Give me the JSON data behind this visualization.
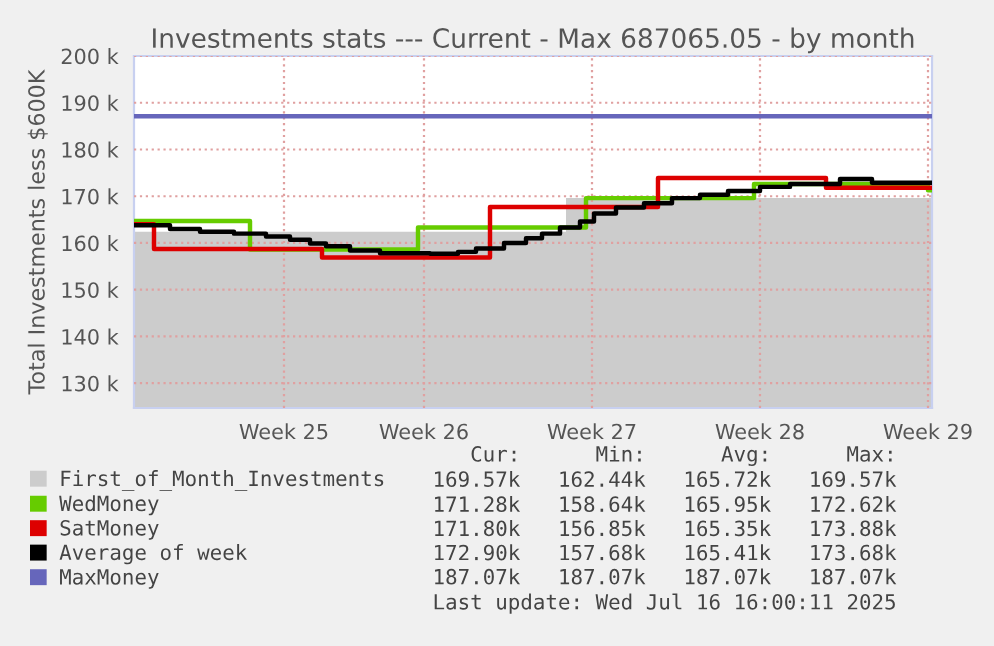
{
  "chart_data": {
    "type": "step",
    "title": "Investments stats --- Current - Max 687065.05 - by month",
    "ylabel": "Total Investments less $600K",
    "xlim": [
      "2025-06-13T10:00",
      "2025-07-16T16:00"
    ],
    "xticks": [
      {
        "value": "2025-06-19T16:00",
        "label": "Week 25"
      },
      {
        "value": "2025-06-25T12:00",
        "label": "Week 26"
      },
      {
        "value": "2025-07-02T12:00",
        "label": "Week 27"
      },
      {
        "value": "2025-07-09T12:00",
        "label": "Week 28"
      },
      {
        "value": "2025-07-16T12:00",
        "label": "Week 29"
      }
    ],
    "ylim": [
      124.7,
      200
    ],
    "yticks": [
      {
        "value": 130,
        "label": "130 k"
      },
      {
        "value": 140,
        "label": "140 k"
      },
      {
        "value": 150,
        "label": "150 k"
      },
      {
        "value": 160,
        "label": "160 k"
      },
      {
        "value": 170,
        "label": "170 k"
      },
      {
        "value": 180,
        "label": "180 k"
      },
      {
        "value": 190,
        "label": "190 k"
      },
      {
        "value": 200,
        "label": "200 k"
      }
    ],
    "grid": true,
    "legend": "bottom",
    "line_style": "solid",
    "series": [
      {
        "name": "First_of_Month_Investments",
        "type": "area",
        "color": "#cccccc",
        "x": [
          "2025-06-13T10:00",
          "2025-07-01T10:00",
          "2025-07-16T16:00"
        ],
        "values": [
          162.4,
          169.6,
          169.6
        ]
      },
      {
        "name": "WedMoney",
        "color": "#66cc00",
        "x": [
          "2025-06-13T10:00",
          "2025-06-18T06:00",
          "2025-06-25T06:00",
          "2025-07-02T06:00",
          "2025-07-09T06:00",
          "2025-07-16T12:00",
          "2025-07-16T16:00"
        ],
        "values": [
          164.7,
          158.6,
          163.3,
          169.6,
          172.6,
          171.3,
          171.3
        ]
      },
      {
        "name": "SatMoney",
        "color": "#dd0000",
        "x": [
          "2025-06-13T10:00",
          "2025-06-14T06:00",
          "2025-06-21T06:00",
          "2025-06-28T06:00",
          "2025-07-05T06:00",
          "2025-07-12T06:00",
          "2025-07-16T16:00"
        ],
        "values": [
          164.0,
          158.7,
          156.9,
          167.7,
          173.9,
          171.8,
          171.8
        ]
      },
      {
        "name": "Average of week",
        "color": "#000000",
        "x": [
          "2025-06-13T10:00",
          "2025-06-14T22:00",
          "2025-06-16T04:00",
          "2025-06-17T14:00",
          "2025-06-18T22:00",
          "2025-06-19T22:00",
          "2025-06-20T18:00",
          "2025-06-21T10:00",
          "2025-06-22T10:00",
          "2025-06-23T16:00",
          "2025-06-25T18:00",
          "2025-06-26T22:00",
          "2025-06-27T16:00",
          "2025-06-28T20:00",
          "2025-06-29T18:00",
          "2025-06-30T10:00",
          "2025-07-01T04:00",
          "2025-07-02T00:00",
          "2025-07-02T14:00",
          "2025-07-03T12:00",
          "2025-07-04T16:00",
          "2025-07-05T20:00",
          "2025-07-07T00:00",
          "2025-07-08T04:00",
          "2025-07-09T12:00",
          "2025-07-10T18:00",
          "2025-07-12T20:00",
          "2025-07-14T04:00",
          "2025-07-16T16:00"
        ],
        "values": [
          163.8,
          163.0,
          162.4,
          162.0,
          161.4,
          160.7,
          159.9,
          159.3,
          158.4,
          157.8,
          157.7,
          158.1,
          158.8,
          160.0,
          161.0,
          162.0,
          163.3,
          164.6,
          166.3,
          167.6,
          168.5,
          169.6,
          170.3,
          171.1,
          172.0,
          172.6,
          173.7,
          172.9,
          172.9
        ]
      },
      {
        "name": "MaxMoney",
        "color": "#6666bb",
        "x": [
          "2025-06-13T10:00",
          "2025-07-16T16:00"
        ],
        "values": [
          187.1,
          187.1
        ]
      }
    ],
    "annotations": [
      "Cur:      Min:      Avg:      Max:",
      "169.57k   162.44k   165.72k   169.57k",
      "171.28k   158.64k   165.95k   172.62k",
      "171.80k   156.85k   165.35k   173.88k",
      "172.90k   157.68k   165.41k   173.68k",
      "187.07k   187.07k   187.07k   187.07k",
      "Last update: Wed Jul 16 16:00:11 2025"
    ]
  }
}
